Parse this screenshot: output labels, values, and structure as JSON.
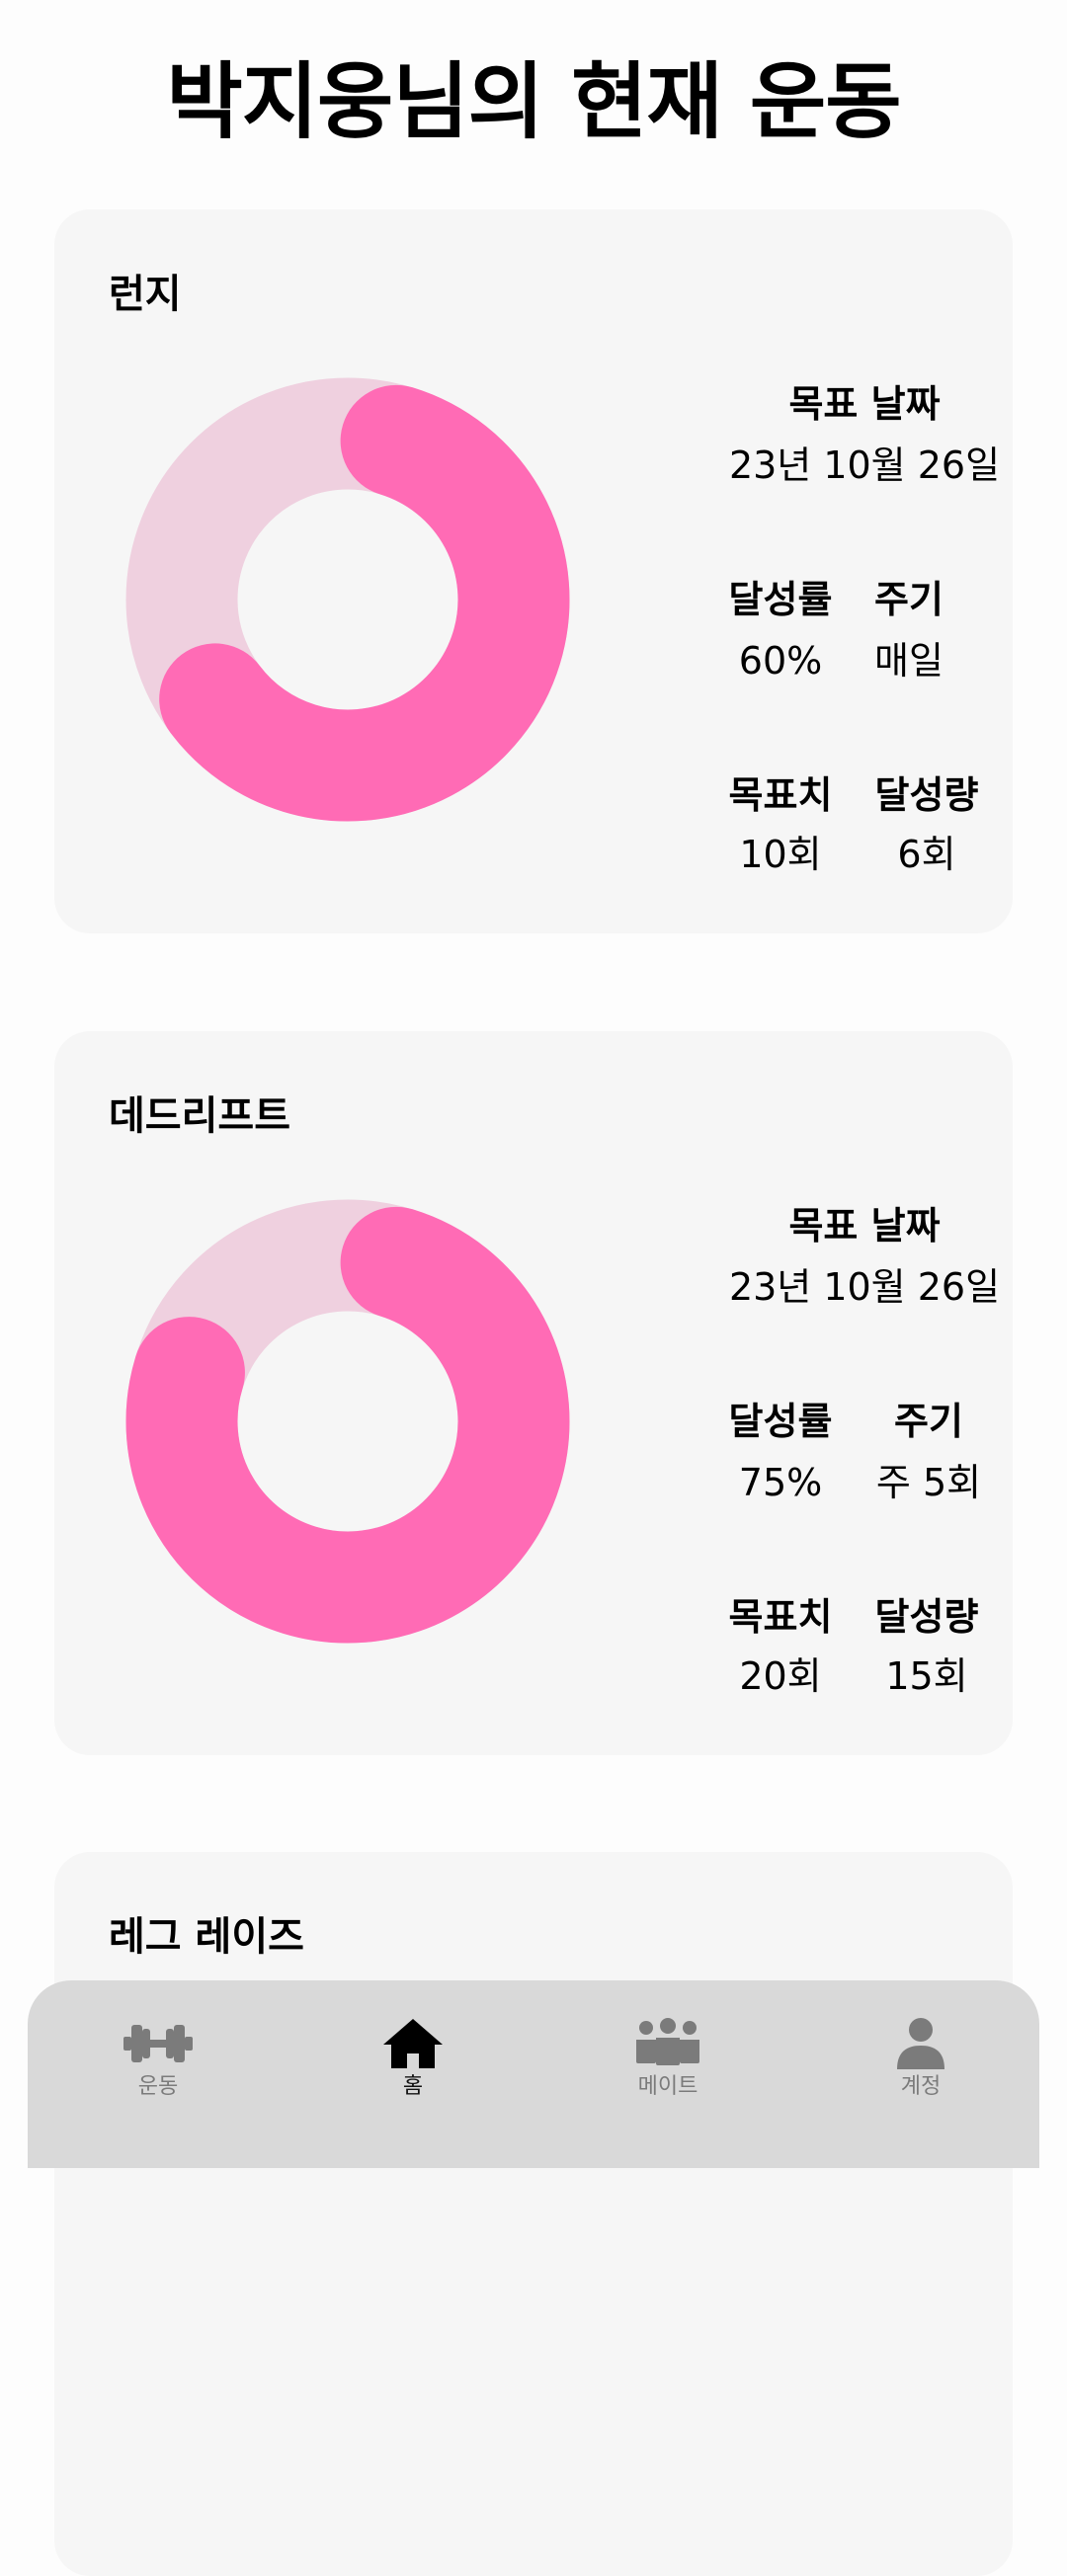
{
  "page": {
    "title": "박지웅님의 현재 운동"
  },
  "colors": {
    "ring_track": "#efd0df",
    "ring_fill": "#ff6bb5",
    "card_bg": "#f6f6f6",
    "nav_bg": "#d9d9d9"
  },
  "labels": {
    "target_date": "목표 날짜",
    "achievement_rate": "달성률",
    "cycle": "주기",
    "target_amount": "목표치",
    "achieved_amount": "달성량"
  },
  "exercises": [
    {
      "name": "런지",
      "target_date": "23년 10월 26일",
      "rate_text": "60%",
      "rate": 0.6,
      "cycle": "매일",
      "target": "10회",
      "achieved": "6회"
    },
    {
      "name": "데드리프트",
      "target_date": "23년 10월 26일",
      "rate_text": "75%",
      "rate": 0.75,
      "cycle": "주 5회",
      "target": "20회",
      "achieved": "15회"
    },
    {
      "name": "레그 레이즈"
    }
  ],
  "nav": {
    "items": [
      {
        "label": "운동",
        "icon": "dumbbell-icon",
        "active": false
      },
      {
        "label": "홈",
        "icon": "home-icon",
        "active": true
      },
      {
        "label": "메이트",
        "icon": "group-icon",
        "active": false
      },
      {
        "label": "계정",
        "icon": "person-icon",
        "active": false
      }
    ]
  }
}
